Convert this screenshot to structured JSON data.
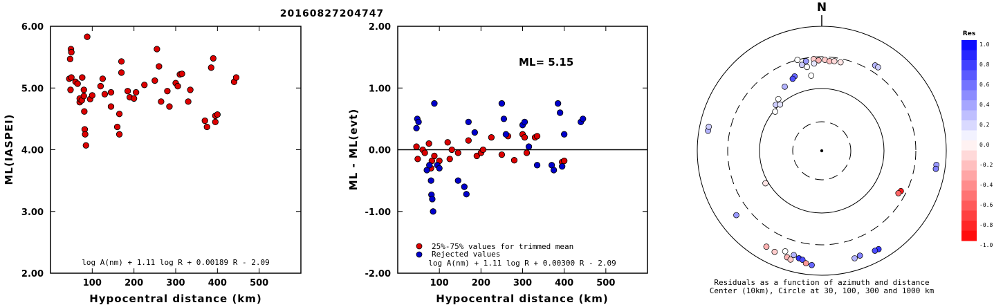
{
  "figure_title": "20160827204747",
  "chart_data": [
    {
      "type": "scatter",
      "xlabel": "Hypocentral distance (km)",
      "ylabel": "ML(IASPEI)",
      "xlim": [
        0,
        600
      ],
      "ylim": [
        2.0,
        6.0
      ],
      "xticks": [
        "100",
        "200",
        "300",
        "400",
        "500"
      ],
      "yticks": [
        "2.00",
        "3.00",
        "4.00",
        "5.00",
        "6.00"
      ],
      "formula": "log A(nm) + 1.11 log R + 0.00189 R - 2.09",
      "series": [
        {
          "color": "#dd0000",
          "x": [
            45,
            47,
            48,
            49,
            50,
            50,
            60,
            65,
            70,
            70,
            75,
            76,
            80,
            80,
            81,
            82,
            83,
            85,
            88,
            95,
            100,
            120,
            125,
            130,
            145,
            145,
            160,
            165,
            165,
            170,
            170,
            185,
            190,
            200,
            205,
            225,
            250,
            255,
            260,
            265,
            280,
            285,
            300,
            305,
            310,
            315,
            330,
            335,
            370,
            375,
            385,
            390,
            395,
            395,
            400,
            440,
            445
          ],
          "y": [
            5.15,
            5.47,
            4.97,
            5.63,
            5.58,
            5.17,
            5.1,
            5.07,
            4.77,
            4.83,
            4.8,
            5.17,
            4.97,
            4.87,
            4.62,
            4.33,
            4.25,
            4.07,
            5.83,
            4.82,
            4.88,
            5.03,
            5.15,
            4.9,
            4.93,
            4.7,
            4.37,
            4.25,
            4.58,
            5.25,
            5.43,
            4.95,
            4.85,
            4.83,
            4.93,
            5.05,
            5.12,
            5.63,
            5.35,
            4.78,
            4.95,
            4.7,
            5.08,
            5.03,
            5.22,
            5.23,
            4.78,
            4.97,
            4.47,
            4.37,
            5.33,
            5.48,
            4.45,
            4.55,
            4.57,
            5.1,
            5.17
          ]
        }
      ]
    },
    {
      "type": "scatter",
      "xlabel": "Hypocentral distance (km)",
      "ylabel": "ML - ML(evt)",
      "xlim": [
        0,
        600
      ],
      "ylim": [
        -2.0,
        2.0
      ],
      "xticks": [
        "100",
        "200",
        "300",
        "400",
        "500"
      ],
      "yticks": [
        "-2.00",
        "-1.00",
        "0.00",
        "1.00",
        "2.00"
      ],
      "annotation": "ML= 5.15",
      "formula": "log A(nm) + 1.11 log R + 0.00300 R - 2.09",
      "series": [
        {
          "name": "25%-75% values for trimmed mean",
          "color": "#dd0000",
          "x": [
            45,
            48,
            60,
            65,
            75,
            80,
            82,
            88,
            100,
            120,
            125,
            130,
            145,
            170,
            190,
            200,
            205,
            225,
            250,
            265,
            280,
            300,
            305,
            310,
            330,
            335,
            395,
            400
          ],
          "y": [
            0.05,
            -0.15,
            0.0,
            -0.05,
            0.1,
            -0.3,
            -0.18,
            -0.1,
            -0.18,
            0.12,
            -0.15,
            0.0,
            -0.05,
            0.15,
            -0.1,
            -0.05,
            0.0,
            0.2,
            -0.08,
            0.22,
            -0.17,
            0.25,
            0.2,
            -0.05,
            0.2,
            0.22,
            -0.2,
            -0.18
          ]
        },
        {
          "name": "Rejected values",
          "color": "#0000cc",
          "x": [
            45,
            47,
            50,
            70,
            76,
            80,
            81,
            83,
            85,
            88,
            95,
            100,
            145,
            160,
            165,
            170,
            185,
            250,
            255,
            260,
            300,
            305,
            315,
            335,
            370,
            375,
            385,
            390,
            395,
            400,
            440,
            445
          ],
          "y": [
            0.35,
            0.5,
            0.45,
            -0.33,
            -0.25,
            -0.5,
            -0.73,
            -0.8,
            -1.0,
            0.75,
            -0.25,
            -0.3,
            -0.5,
            -0.6,
            -0.72,
            0.45,
            0.28,
            0.75,
            0.5,
            0.25,
            0.4,
            0.45,
            0.05,
            -0.25,
            -0.25,
            -0.33,
            0.75,
            0.6,
            -0.27,
            0.25,
            0.45,
            0.5
          ]
        }
      ]
    },
    {
      "type": "polar-scatter",
      "north_label": "N",
      "caption_line1": "Residuals as a function of azimuth and distance",
      "caption_line2": "Center (10km), Circle at 30, 100, 300 and 1000 km",
      "colorbar_title": "Res",
      "colorbar_ticks": [
        "1.0",
        "0.8",
        "0.6",
        "0.4",
        "0.2",
        "0.0",
        "-0.2",
        "-0.4",
        "-0.6",
        "-0.8",
        "-1.0"
      ],
      "colorbar_range": [
        -1.0,
        1.0
      ],
      "points": [
        {
          "az": 345,
          "dist": 300,
          "res": 0.0
        },
        {
          "az": 350,
          "dist": 270,
          "res": 0.4
        },
        {
          "az": 355,
          "dist": 280,
          "res": -0.2
        },
        {
          "az": 358,
          "dist": 265,
          "res": -0.3
        },
        {
          "az": 2,
          "dist": 270,
          "res": -0.2
        },
        {
          "az": 5,
          "dist": 260,
          "res": -0.25
        },
        {
          "az": 8,
          "dist": 265,
          "res": -0.15
        },
        {
          "az": 12,
          "dist": 265,
          "res": -0.1
        },
        {
          "az": 355,
          "dist": 240,
          "res": 0.1
        },
        {
          "az": 350,
          "dist": 220,
          "res": 0.0
        },
        {
          "az": 347,
          "dist": 245,
          "res": 0.2
        },
        {
          "az": 340,
          "dist": 180,
          "res": 0.6
        },
        {
          "az": 338,
          "dist": 170,
          "res": 0.7
        },
        {
          "az": 352,
          "dist": 160,
          "res": 0.0
        },
        {
          "az": 320,
          "dist": 120,
          "res": 0.0
        },
        {
          "az": 315,
          "dist": 110,
          "res": 0.2
        },
        {
          "az": 310,
          "dist": 95,
          "res": 0.0
        },
        {
          "az": 318,
          "dist": 100,
          "res": 0.1
        },
        {
          "az": 330,
          "dist": 150,
          "res": 0.3
        },
        {
          "az": 32,
          "dist": 390,
          "res": 0.3
        },
        {
          "az": 34,
          "dist": 390,
          "res": 0.2
        },
        {
          "az": 280,
          "dist": 700,
          "res": 0.3
        },
        {
          "az": 282,
          "dist": 700,
          "res": 0.2
        },
        {
          "az": 97,
          "dist": 700,
          "res": 0.4
        },
        {
          "az": 99,
          "dist": 700,
          "res": 0.5
        },
        {
          "az": 117,
          "dist": 250,
          "res": -0.9
        },
        {
          "az": 119,
          "dist": 240,
          "res": -0.6
        },
        {
          "az": 240,
          "dist": 110,
          "res": -0.1
        },
        {
          "az": 233,
          "dist": 500,
          "res": 0.4
        },
        {
          "az": 205,
          "dist": 600,
          "res": -0.2
        },
        {
          "az": 210,
          "dist": 580,
          "res": -0.3
        },
        {
          "az": 200,
          "dist": 500,
          "res": 0.0
        },
        {
          "az": 195,
          "dist": 520,
          "res": 0.3
        },
        {
          "az": 192,
          "dist": 560,
          "res": 0.8
        },
        {
          "az": 190,
          "dist": 580,
          "res": 0.7
        },
        {
          "az": 198,
          "dist": 610,
          "res": -0.3
        },
        {
          "az": 196,
          "dist": 640,
          "res": -0.2
        },
        {
          "az": 185,
          "dist": 680,
          "res": 0.6
        },
        {
          "az": 160,
          "dist": 600,
          "res": 0.5
        },
        {
          "az": 163,
          "dist": 620,
          "res": 0.3
        },
        {
          "az": 150,
          "dist": 650,
          "res": 0.8
        },
        {
          "az": 152,
          "dist": 640,
          "res": 0.7
        },
        {
          "az": 188,
          "dist": 650,
          "res": -0.4
        }
      ]
    }
  ]
}
